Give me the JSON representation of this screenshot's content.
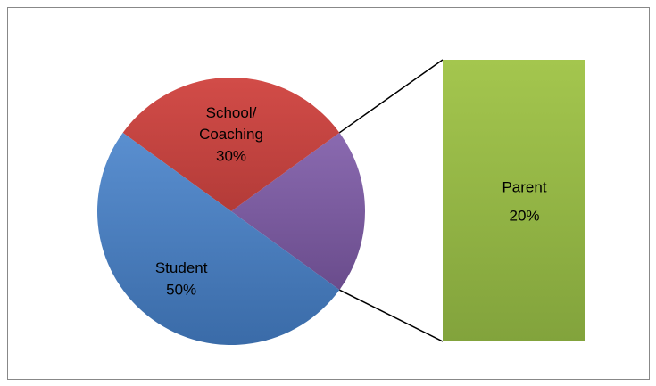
{
  "chart_data": {
    "type": "bar-of-pie",
    "categories": [
      "Student",
      "School/ Coaching",
      "Parent"
    ],
    "values": [
      50,
      30,
      20
    ],
    "value_labels": [
      "50%",
      "30%",
      "20%"
    ],
    "colors": [
      "#4f81bd",
      "#c0504d",
      "#9bbb59"
    ],
    "other_color": "#8064a2"
  }
}
